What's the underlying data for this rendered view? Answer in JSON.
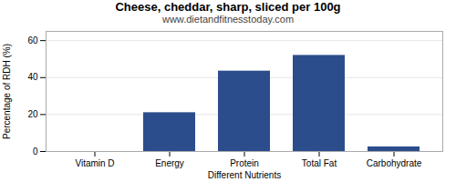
{
  "chart_data": {
    "type": "bar",
    "title": "Cheese, cheddar, sharp, sliced per 100g",
    "subtitle": "www.dietandfitnesstoday.com",
    "xlabel": "Different Nutrients",
    "ylabel": "Percentage of RDH (%)",
    "categories": [
      "Vitamin D",
      "Energy",
      "Protein",
      "Total Fat",
      "Carbohydrate"
    ],
    "values": [
      0,
      21,
      43.5,
      52,
      2.5
    ],
    "color": "#2b4d8c",
    "ylim": [
      0,
      65
    ],
    "yticks": [
      0,
      20,
      40,
      60
    ],
    "grid": true
  }
}
